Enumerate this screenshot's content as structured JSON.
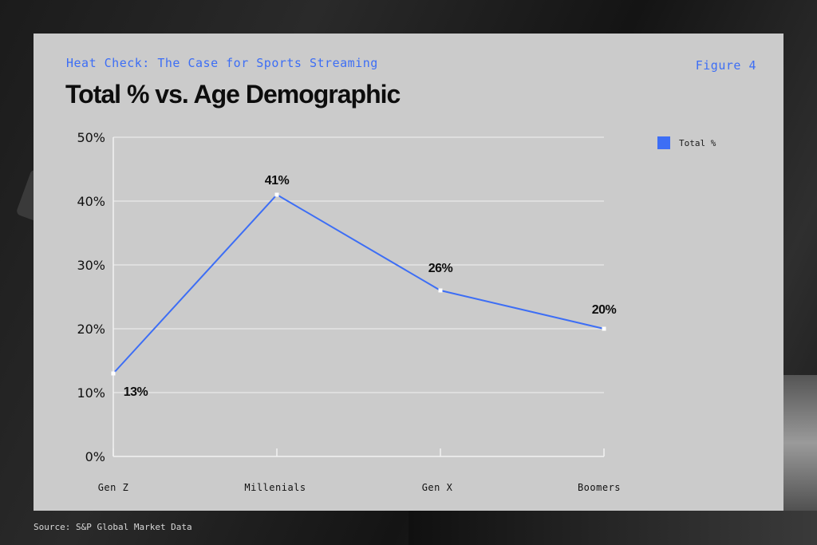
{
  "header": {
    "kicker": "Heat Check: The Case for Sports Streaming",
    "figure_label": "Figure 4"
  },
  "source": "Source: S&P Global Market Data",
  "colors": {
    "accent": "#3d6ef5",
    "card_bg": "#cbcbcb",
    "grid": "#e4e4e4",
    "axis": "#f2f2f2"
  },
  "chart_data": {
    "type": "line",
    "title": "Total % vs. Age Demographic",
    "xlabel": "",
    "ylabel": "",
    "categories": [
      "Gen Z",
      "Millenials",
      "Gen X",
      "Boomers"
    ],
    "series": [
      {
        "name": "Total %",
        "values": [
          13,
          41,
          26,
          20
        ],
        "labels": [
          "13%",
          "41%",
          "26%",
          "20%"
        ]
      }
    ],
    "ylim": [
      0,
      50
    ],
    "yticks": [
      0,
      10,
      20,
      30,
      40,
      50
    ],
    "ytick_labels": [
      "0%",
      "10%",
      "20%",
      "30%",
      "40%",
      "50%"
    ],
    "grid": true,
    "legend_position": "top-right"
  }
}
